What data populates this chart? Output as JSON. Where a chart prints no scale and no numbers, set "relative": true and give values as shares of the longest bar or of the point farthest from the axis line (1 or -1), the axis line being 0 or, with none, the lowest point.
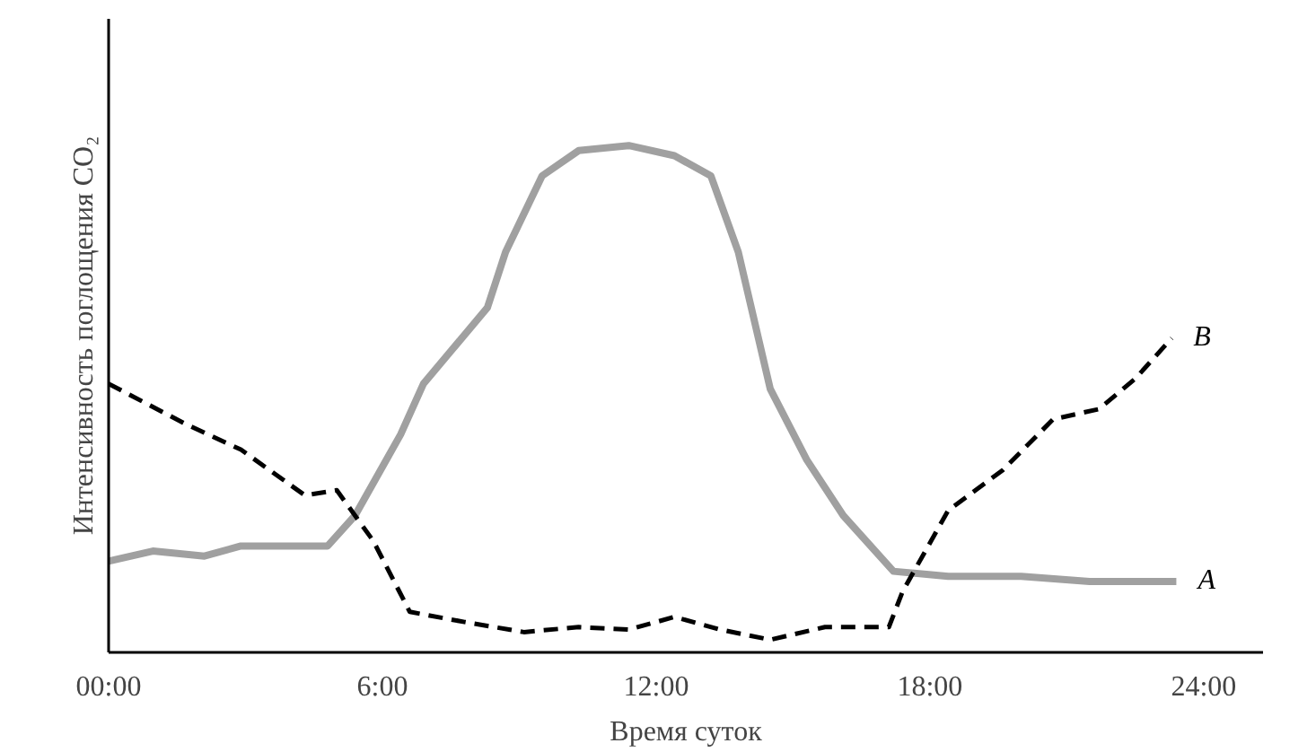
{
  "chart_data": {
    "type": "line",
    "relative": true,
    "xlabel": "Время суток",
    "ylabel": "Интенсивность поглощения CO₂",
    "xlim": [
      0,
      25.3
    ],
    "xticks": [
      {
        "value": 0,
        "label": "00:00"
      },
      {
        "value": 6,
        "label": "6:00"
      },
      {
        "value": 12,
        "label": "12:00"
      },
      {
        "value": 18,
        "label": "18:00"
      },
      {
        "value": 24,
        "label": "24:00"
      }
    ],
    "series": [
      {
        "name": "A",
        "color": "#a0a0a0",
        "line_style": "solid",
        "x": [
          0,
          0.97,
          2.1,
          2.9,
          4.8,
          5.4,
          6.4,
          6.9,
          8.3,
          8.7,
          9.5,
          10.3,
          11.4,
          12.4,
          13.2,
          13.8,
          14.5,
          15.3,
          16.1,
          17.2,
          18.4,
          20.0,
          21.5,
          23.4
        ],
        "values": [
          0.18,
          0.2,
          0.19,
          0.21,
          0.21,
          0.27,
          0.43,
          0.53,
          0.68,
          0.79,
          0.94,
          0.99,
          1.0,
          0.98,
          0.94,
          0.79,
          0.52,
          0.38,
          0.27,
          0.16,
          0.15,
          0.15,
          0.14,
          0.14
        ]
      },
      {
        "name": "B",
        "color": "#000000",
        "line_style": "dashed",
        "x": [
          0,
          1.7,
          2.9,
          4.3,
          5.0,
          5.8,
          6.6,
          7.8,
          9.1,
          10.3,
          11.4,
          12.4,
          13.4,
          14.5,
          15.7,
          17.1,
          17.4,
          18.4,
          19.6,
          20.7,
          21.7,
          22.5,
          23.3
        ],
        "values": [
          0.53,
          0.45,
          0.4,
          0.31,
          0.32,
          0.22,
          0.08,
          0.06,
          0.04,
          0.05,
          0.045,
          0.07,
          0.045,
          0.025,
          0.05,
          0.05,
          0.12,
          0.28,
          0.36,
          0.46,
          0.48,
          0.54,
          0.62
        ]
      }
    ]
  }
}
